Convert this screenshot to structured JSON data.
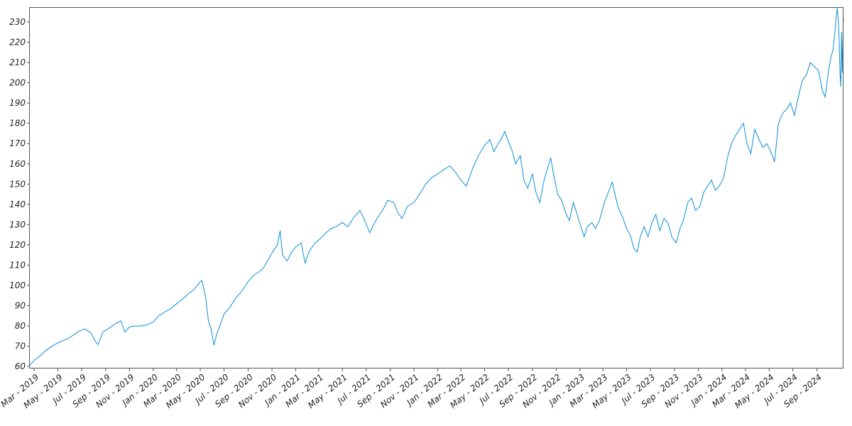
{
  "chart_data": {
    "type": "line",
    "title": "",
    "xlabel": "",
    "ylabel": "",
    "ylim": [
      59,
      237
    ],
    "xlim": [
      "2019-02-18",
      "2024-11-08"
    ],
    "grid": false,
    "legend": "none",
    "colors": {
      "line": "#0a8fd6",
      "frame": "#555555",
      "text": "#222222"
    },
    "y_ticks": [
      60,
      70,
      80,
      90,
      100,
      110,
      120,
      130,
      140,
      150,
      160,
      170,
      180,
      190,
      200,
      210,
      220,
      230
    ],
    "x_ticks": [
      {
        "date": "2019-03-01",
        "label": "Mar - 2019"
      },
      {
        "date": "2019-05-01",
        "label": "May - 2019"
      },
      {
        "date": "2019-07-01",
        "label": "Jul - 2019"
      },
      {
        "date": "2019-09-01",
        "label": "Sep - 2019"
      },
      {
        "date": "2019-11-01",
        "label": "Nov - 2019"
      },
      {
        "date": "2020-01-01",
        "label": "Jan - 2020"
      },
      {
        "date": "2020-03-01",
        "label": "Mar - 2020"
      },
      {
        "date": "2020-05-01",
        "label": "May - 2020"
      },
      {
        "date": "2020-07-01",
        "label": "Jul - 2020"
      },
      {
        "date": "2020-09-01",
        "label": "Sep - 2020"
      },
      {
        "date": "2020-11-01",
        "label": "Nov - 2020"
      },
      {
        "date": "2021-01-01",
        "label": "Jan - 2021"
      },
      {
        "date": "2021-03-01",
        "label": "Mar - 2021"
      },
      {
        "date": "2021-05-01",
        "label": "May - 2021"
      },
      {
        "date": "2021-07-01",
        "label": "Jul - 2021"
      },
      {
        "date": "2021-09-01",
        "label": "Sep - 2021"
      },
      {
        "date": "2021-11-01",
        "label": "Nov - 2021"
      },
      {
        "date": "2022-01-01",
        "label": "Jan - 2022"
      },
      {
        "date": "2022-03-01",
        "label": "Mar - 2022"
      },
      {
        "date": "2022-05-01",
        "label": "May - 2022"
      },
      {
        "date": "2022-07-01",
        "label": "Jul - 2022"
      },
      {
        "date": "2022-09-01",
        "label": "Sep - 2022"
      },
      {
        "date": "2022-11-01",
        "label": "Nov - 2022"
      },
      {
        "date": "2023-01-01",
        "label": "Jan - 2023"
      },
      {
        "date": "2023-03-01",
        "label": "Mar - 2023"
      },
      {
        "date": "2023-05-01",
        "label": "May - 2023"
      },
      {
        "date": "2023-07-01",
        "label": "Jul - 2023"
      },
      {
        "date": "2023-09-01",
        "label": "Sep - 2023"
      },
      {
        "date": "2023-11-01",
        "label": "Nov - 2023"
      },
      {
        "date": "2024-01-01",
        "label": "Jan - 2024"
      },
      {
        "date": "2024-03-01",
        "label": "Mar - 2024"
      },
      {
        "date": "2024-05-01",
        "label": "May - 2024"
      },
      {
        "date": "2024-07-01",
        "label": "Jul - 2024"
      },
      {
        "date": "2024-09-01",
        "label": "Sep - 2024"
      }
    ],
    "series": [
      {
        "points": [
          [
            "2019-02-18",
            60.5
          ],
          [
            "2019-03-01",
            63
          ],
          [
            "2019-03-15",
            65
          ],
          [
            "2019-04-01",
            68
          ],
          [
            "2019-04-20",
            70.5
          ],
          [
            "2019-05-10",
            72.5
          ],
          [
            "2019-05-25",
            73.5
          ],
          [
            "2019-06-10",
            75.5
          ],
          [
            "2019-06-25",
            77.5
          ],
          [
            "2019-07-10",
            78.5
          ],
          [
            "2019-07-25",
            76.5
          ],
          [
            "2019-08-05",
            72.5
          ],
          [
            "2019-08-12",
            70.8
          ],
          [
            "2019-08-25",
            77
          ],
          [
            "2019-09-10",
            79
          ],
          [
            "2019-09-25",
            81
          ],
          [
            "2019-10-10",
            82.5
          ],
          [
            "2019-10-20",
            77
          ],
          [
            "2019-11-01",
            79.5
          ],
          [
            "2019-11-15",
            80
          ],
          [
            "2019-12-01",
            80
          ],
          [
            "2019-12-15",
            80.5
          ],
          [
            "2020-01-01",
            82
          ],
          [
            "2020-01-15",
            85
          ],
          [
            "2020-02-01",
            87
          ],
          [
            "2020-02-15",
            88.5
          ],
          [
            "2020-03-01",
            91
          ],
          [
            "2020-03-15",
            93
          ],
          [
            "2020-04-01",
            96
          ],
          [
            "2020-04-15",
            98
          ],
          [
            "2020-04-25",
            100.5
          ],
          [
            "2020-05-05",
            102.5
          ],
          [
            "2020-05-15",
            94
          ],
          [
            "2020-05-22",
            82
          ],
          [
            "2020-05-28",
            79
          ],
          [
            "2020-06-05",
            70.5
          ],
          [
            "2020-06-12",
            76
          ],
          [
            "2020-06-20",
            80
          ],
          [
            "2020-07-01",
            86
          ],
          [
            "2020-07-15",
            89
          ],
          [
            "2020-08-01",
            94
          ],
          [
            "2020-08-15",
            97
          ],
          [
            "2020-09-01",
            102
          ],
          [
            "2020-09-15",
            105
          ],
          [
            "2020-10-01",
            107
          ],
          [
            "2020-10-10",
            108.5
          ],
          [
            "2020-10-20",
            112
          ],
          [
            "2020-11-01",
            116
          ],
          [
            "2020-11-15",
            120
          ],
          [
            "2020-11-22",
            127
          ],
          [
            "2020-11-28",
            115
          ],
          [
            "2020-12-10",
            112
          ],
          [
            "2020-12-20",
            116
          ],
          [
            "2021-01-01",
            119
          ],
          [
            "2021-01-15",
            121
          ],
          [
            "2021-01-25",
            111
          ],
          [
            "2021-02-05",
            117
          ],
          [
            "2021-02-20",
            121
          ],
          [
            "2021-03-05",
            123
          ],
          [
            "2021-03-20",
            126
          ],
          [
            "2021-04-01",
            128
          ],
          [
            "2021-04-15",
            129
          ],
          [
            "2021-05-01",
            131
          ],
          [
            "2021-05-15",
            129
          ],
          [
            "2021-06-01",
            134
          ],
          [
            "2021-06-15",
            137
          ],
          [
            "2021-06-25",
            133
          ],
          [
            "2021-07-10",
            126
          ],
          [
            "2021-07-20",
            130
          ],
          [
            "2021-08-01",
            134
          ],
          [
            "2021-08-15",
            138
          ],
          [
            "2021-08-25",
            142
          ],
          [
            "2021-09-10",
            141
          ],
          [
            "2021-09-20",
            136
          ],
          [
            "2021-10-01",
            133
          ],
          [
            "2021-10-15",
            139
          ],
          [
            "2021-11-01",
            141
          ],
          [
            "2021-11-15",
            145
          ],
          [
            "2021-12-01",
            150
          ],
          [
            "2021-12-15",
            153
          ],
          [
            "2022-01-01",
            155
          ],
          [
            "2022-01-15",
            157
          ],
          [
            "2022-02-01",
            159
          ],
          [
            "2022-02-15",
            156
          ],
          [
            "2022-03-01",
            152
          ],
          [
            "2022-03-15",
            149
          ],
          [
            "2022-04-01",
            158
          ],
          [
            "2022-04-15",
            164
          ],
          [
            "2022-05-01",
            169
          ],
          [
            "2022-05-15",
            172
          ],
          [
            "2022-05-25",
            166
          ],
          [
            "2022-06-05",
            170
          ],
          [
            "2022-06-15",
            173
          ],
          [
            "2022-06-22",
            176
          ],
          [
            "2022-07-01",
            171
          ],
          [
            "2022-07-10",
            167
          ],
          [
            "2022-07-20",
            160
          ],
          [
            "2022-08-01",
            164
          ],
          [
            "2022-08-10",
            152
          ],
          [
            "2022-08-20",
            148
          ],
          [
            "2022-09-01",
            155
          ],
          [
            "2022-09-10",
            146
          ],
          [
            "2022-09-20",
            141
          ],
          [
            "2022-10-01",
            152
          ],
          [
            "2022-10-10",
            158
          ],
          [
            "2022-10-18",
            163
          ],
          [
            "2022-10-25",
            155
          ],
          [
            "2022-11-05",
            145
          ],
          [
            "2022-11-15",
            142
          ],
          [
            "2022-11-25",
            136
          ],
          [
            "2022-12-05",
            132
          ],
          [
            "2022-12-15",
            141
          ],
          [
            "2022-12-25",
            135
          ],
          [
            "2023-01-05",
            128
          ],
          [
            "2023-01-12",
            124
          ],
          [
            "2023-01-20",
            129
          ],
          [
            "2023-02-01",
            131
          ],
          [
            "2023-02-10",
            128
          ],
          [
            "2023-02-20",
            132
          ],
          [
            "2023-03-05",
            141
          ],
          [
            "2023-03-15",
            146
          ],
          [
            "2023-03-25",
            151
          ],
          [
            "2023-04-01",
            145
          ],
          [
            "2023-04-10",
            138
          ],
          [
            "2023-04-20",
            134
          ],
          [
            "2023-05-01",
            128
          ],
          [
            "2023-05-10",
            125
          ],
          [
            "2023-05-20",
            118
          ],
          [
            "2023-05-28",
            116.5
          ],
          [
            "2023-06-05",
            124
          ],
          [
            "2023-06-15",
            129
          ],
          [
            "2023-06-25",
            124
          ],
          [
            "2023-07-05",
            131
          ],
          [
            "2023-07-15",
            135
          ],
          [
            "2023-07-25",
            127
          ],
          [
            "2023-08-05",
            133
          ],
          [
            "2023-08-15",
            131
          ],
          [
            "2023-08-25",
            124
          ],
          [
            "2023-09-05",
            121
          ],
          [
            "2023-09-15",
            128
          ],
          [
            "2023-09-25",
            133
          ],
          [
            "2023-10-05",
            141
          ],
          [
            "2023-10-15",
            143
          ],
          [
            "2023-10-25",
            137
          ],
          [
            "2023-11-05",
            139
          ],
          [
            "2023-11-15",
            146
          ],
          [
            "2023-11-25",
            149
          ],
          [
            "2023-12-05",
            152
          ],
          [
            "2023-12-15",
            147
          ],
          [
            "2023-12-25",
            149
          ],
          [
            "2024-01-05",
            153
          ],
          [
            "2024-01-15",
            163
          ],
          [
            "2024-01-25",
            170
          ],
          [
            "2024-02-05",
            174
          ],
          [
            "2024-02-15",
            177
          ],
          [
            "2024-02-25",
            180
          ],
          [
            "2024-03-05",
            170
          ],
          [
            "2024-03-15",
            165
          ],
          [
            "2024-03-25",
            177
          ],
          [
            "2024-04-05",
            172
          ],
          [
            "2024-04-15",
            168
          ],
          [
            "2024-04-25",
            170
          ],
          [
            "2024-05-05",
            166
          ],
          [
            "2024-05-15",
            161
          ],
          [
            "2024-05-25",
            180
          ],
          [
            "2024-06-05",
            185
          ],
          [
            "2024-06-15",
            187
          ],
          [
            "2024-06-25",
            190
          ],
          [
            "2024-07-05",
            184
          ],
          [
            "2024-07-15",
            193
          ],
          [
            "2024-07-25",
            201
          ],
          [
            "2024-08-05",
            204
          ],
          [
            "2024-08-15",
            210
          ],
          [
            "2024-08-25",
            208
          ],
          [
            "2024-09-05",
            206
          ],
          [
            "2024-09-15",
            196
          ],
          [
            "2024-09-22",
            193
          ],
          [
            "2024-09-30",
            205
          ],
          [
            "2024-10-07",
            213
          ],
          [
            "2024-10-12",
            216
          ],
          [
            "2024-10-16",
            223
          ],
          [
            "2024-10-20",
            232
          ],
          [
            "2024-10-23",
            237
          ],
          [
            "2024-10-26",
            230
          ],
          [
            "2024-10-28",
            220
          ],
          [
            "2024-10-30",
            205
          ],
          [
            "2024-11-01",
            198
          ],
          [
            "2024-11-02",
            210
          ],
          [
            "2024-11-03",
            225
          ],
          [
            "2024-11-04",
            214
          ],
          [
            "2024-11-05",
            205
          ],
          [
            "2024-11-06",
            216
          ],
          [
            "2024-11-07",
            228
          ],
          [
            "2024-11-08",
            232
          ]
        ]
      }
    ]
  }
}
